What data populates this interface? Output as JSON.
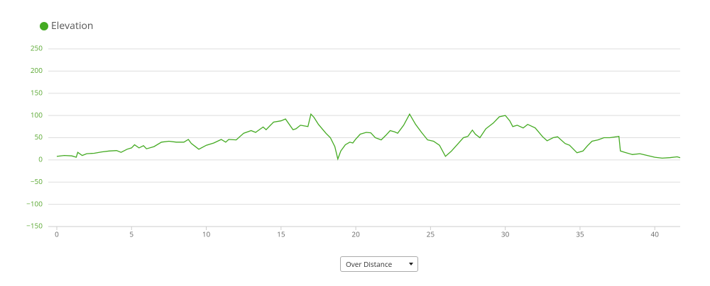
{
  "chart_data": {
    "type": "line",
    "color": "#44aa22",
    "legend": "top-left",
    "grid": true,
    "series": [
      {
        "name": "Elevation",
        "color": "#44aa22",
        "x": [
          0,
          0.5,
          1,
          1.3,
          1.4,
          1.7,
          2,
          2.5,
          3,
          3.5,
          4,
          4.3,
          4.7,
          5,
          5.2,
          5.5,
          5.8,
          6,
          6.5,
          7,
          7.5,
          8,
          8.5,
          8.8,
          9,
          9.5,
          10,
          10.5,
          11,
          11.3,
          11.5,
          12,
          12.5,
          13,
          13.3,
          13.8,
          14,
          14.5,
          15,
          15.3,
          15.8,
          16,
          16.3,
          16.8,
          17,
          17.2,
          17.5,
          18,
          18.3,
          18.6,
          18.8,
          19,
          19.3,
          19.6,
          19.8,
          20,
          20.3,
          20.7,
          21,
          21.3,
          21.7,
          22,
          22.3,
          22.6,
          22.8,
          23.2,
          23.6,
          24,
          24.4,
          24.8,
          25.2,
          25.6,
          26,
          26.4,
          26.8,
          27.2,
          27.5,
          27.8,
          28,
          28.3,
          28.7,
          29.2,
          29.6,
          30,
          30.3,
          30.5,
          30.8,
          31.2,
          31.5,
          32,
          32.5,
          32.8,
          33.2,
          33.5,
          34,
          34.3,
          34.8,
          35.2,
          35.5,
          35.8,
          36.2,
          36.6,
          37,
          37.6,
          37.7,
          38,
          38.5,
          39,
          39.5,
          40,
          40.5,
          41,
          41.5,
          41.7
        ],
        "values": [
          8,
          10,
          9,
          6,
          17,
          10,
          14,
          15,
          18,
          20,
          21,
          17,
          24,
          27,
          34,
          27,
          32,
          25,
          30,
          40,
          42,
          40,
          40,
          46,
          37,
          24,
          33,
          38,
          46,
          40,
          46,
          45,
          60,
          66,
          62,
          74,
          68,
          85,
          88,
          92,
          68,
          70,
          78,
          75,
          103,
          96,
          80,
          60,
          50,
          30,
          2,
          20,
          34,
          40,
          38,
          47,
          58,
          62,
          61,
          50,
          45,
          55,
          66,
          63,
          60,
          78,
          103,
          80,
          62,
          45,
          42,
          33,
          8,
          20,
          35,
          50,
          53,
          67,
          58,
          50,
          70,
          83,
          97,
          100,
          88,
          75,
          78,
          72,
          80,
          72,
          52,
          43,
          50,
          52,
          37,
          33,
          16,
          20,
          32,
          42,
          45,
          50,
          50,
          53,
          20,
          17,
          12,
          14,
          10,
          6,
          4,
          5,
          7,
          5
        ]
      }
    ],
    "xlim": [
      -0.57,
      41.7
    ],
    "ylim": [
      -150,
      250
    ],
    "xticks": [
      0,
      5,
      10,
      15,
      20,
      25,
      30,
      35,
      40
    ],
    "yticks": [
      {
        "value": -150,
        "label": "−150"
      },
      {
        "value": -100,
        "label": "−100"
      },
      {
        "value": -50,
        "label": "−50"
      },
      0,
      50,
      100,
      150,
      200,
      250
    ]
  },
  "controls": {
    "dropdown": "Over Distance"
  }
}
